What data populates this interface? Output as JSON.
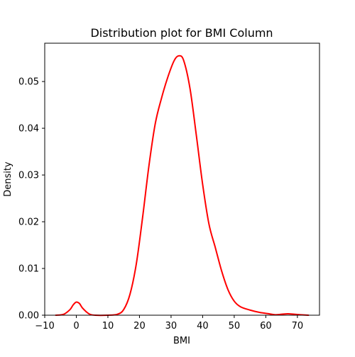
{
  "chart_data": {
    "type": "line",
    "title": "Distribution plot for BMI Column",
    "xlabel": "BMI",
    "ylabel": "Density",
    "xlim": [
      -10,
      77
    ],
    "ylim": [
      0,
      0.0582
    ],
    "xticks": [
      -10,
      0,
      10,
      20,
      30,
      40,
      50,
      60,
      70
    ],
    "yticks": [
      0.0,
      0.01,
      0.02,
      0.03,
      0.04,
      0.05
    ],
    "ytick_labels": [
      "0.00",
      "0.01",
      "0.02",
      "0.03",
      "0.04",
      "0.05"
    ],
    "grid": false,
    "legend": "none",
    "series": [
      {
        "color": "#ff0000",
        "points": [
          [
            -6.5,
            0.0
          ],
          [
            -4,
            0.0002
          ],
          [
            -2,
            0.0012
          ],
          [
            -1,
            0.0022
          ],
          [
            0,
            0.0028
          ],
          [
            1,
            0.0025
          ],
          [
            2,
            0.0015
          ],
          [
            4,
            0.0003
          ],
          [
            6,
            0.0
          ],
          [
            10,
            0.0
          ],
          [
            13,
            0.0002
          ],
          [
            15,
            0.0012
          ],
          [
            17,
            0.0045
          ],
          [
            19,
            0.011
          ],
          [
            21,
            0.021
          ],
          [
            23,
            0.032
          ],
          [
            25,
            0.041
          ],
          [
            27,
            0.0465
          ],
          [
            29,
            0.051
          ],
          [
            31,
            0.0545
          ],
          [
            32.5,
            0.0555
          ],
          [
            34,
            0.0545
          ],
          [
            36,
            0.0485
          ],
          [
            38,
            0.0385
          ],
          [
            40,
            0.028
          ],
          [
            42,
            0.0195
          ],
          [
            44,
            0.0145
          ],
          [
            46,
            0.0095
          ],
          [
            48,
            0.0055
          ],
          [
            50,
            0.003
          ],
          [
            52,
            0.0018
          ],
          [
            55,
            0.0011
          ],
          [
            58,
            0.0006
          ],
          [
            61,
            0.0003
          ],
          [
            63,
            0.0001
          ],
          [
            65,
            0.0002
          ],
          [
            67,
            0.0003
          ],
          [
            69,
            0.0002
          ],
          [
            71,
            0.0001
          ],
          [
            73.5,
            0.0
          ]
        ]
      }
    ]
  }
}
